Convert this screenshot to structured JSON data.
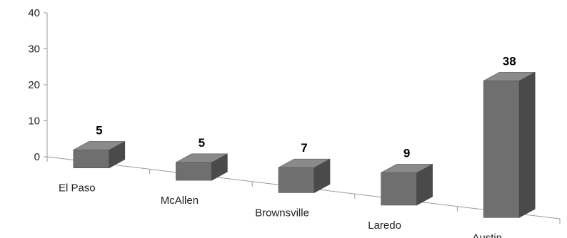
{
  "chart_data": {
    "type": "bar",
    "categories": [
      "El Paso",
      "McAllen",
      "Brownsville",
      "Laredo",
      "Austin"
    ],
    "values": [
      5,
      5,
      7,
      9,
      38
    ],
    "data_labels": [
      "5",
      "5",
      "7",
      "9",
      "38"
    ],
    "yticks": [
      "0",
      "10",
      "20",
      "30",
      "40"
    ],
    "ylim": [
      0,
      40
    ],
    "grid": false,
    "legend": "none",
    "style": "3d-column",
    "colors": {
      "front": "#6f6f6f",
      "top": "#8a8a8a",
      "side": "#4a4a4a",
      "axis": "#9a9a9a"
    }
  }
}
